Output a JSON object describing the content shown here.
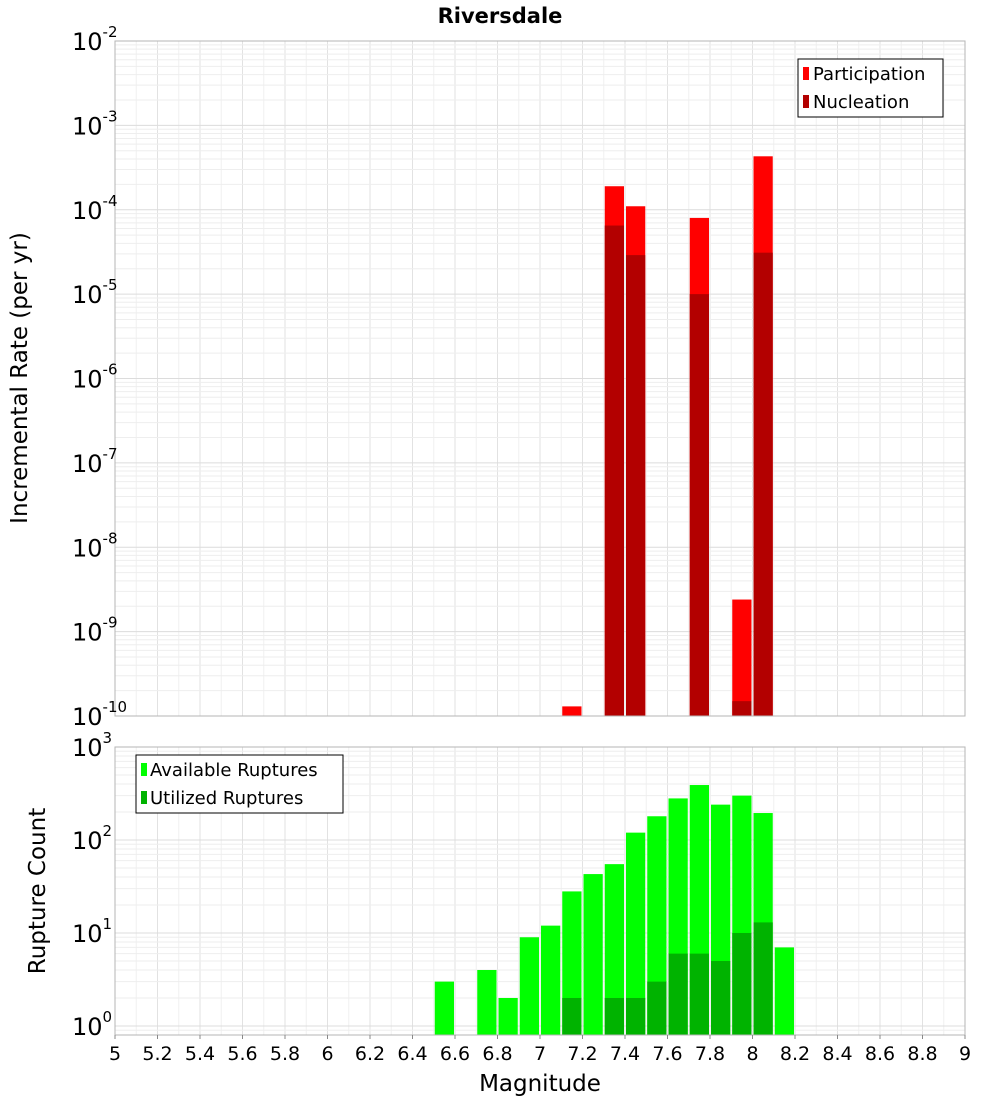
{
  "chart_data": [
    {
      "type": "bar",
      "title": "Riversdale",
      "xlabel": "",
      "ylabel": "Incremental Rate (per yr)",
      "y_scale": "log",
      "ylim": [
        1e-10,
        0.01
      ],
      "xlim": [
        5,
        9
      ],
      "bin_width": 0.1,
      "grid": true,
      "legend_position": "top-right",
      "series": [
        {
          "name": "Participation",
          "color": "#ff0000",
          "x": [
            7.15,
            7.35,
            7.45,
            7.75,
            7.95,
            8.05
          ],
          "values": [
            1.3e-10,
            0.00019,
            0.00011,
            8e-05,
            2.4e-09,
            0.00043
          ]
        },
        {
          "name": "Nucleation",
          "color": "#b30000",
          "x": [
            7.35,
            7.45,
            7.75,
            7.95,
            8.05
          ],
          "values": [
            6.5e-05,
            2.9e-05,
            1e-05,
            1.5e-10,
            3.1e-05
          ]
        }
      ]
    },
    {
      "type": "bar",
      "title": "",
      "xlabel": "Magnitude",
      "ylabel": "Rupture Count",
      "y_scale": "log",
      "ylim": [
        0.8,
        1000
      ],
      "xlim": [
        5,
        9
      ],
      "bin_width": 0.1,
      "grid": true,
      "legend_position": "top-left",
      "x_ticks": [
        "5",
        "5.2",
        "5.4",
        "5.6",
        "5.8",
        "6",
        "6.2",
        "6.4",
        "6.6",
        "6.8",
        "7",
        "7.2",
        "7.4",
        "7.6",
        "7.8",
        "8",
        "8.2",
        "8.4",
        "8.6",
        "8.8",
        "9"
      ],
      "series": [
        {
          "name": "Available Ruptures",
          "color": "#00ff00",
          "x": [
            6.55,
            6.75,
            6.85,
            6.95,
            7.05,
            7.15,
            7.25,
            7.35,
            7.45,
            7.55,
            7.65,
            7.75,
            7.85,
            7.95,
            8.05,
            8.15
          ],
          "values": [
            3,
            4,
            2,
            9,
            12,
            28,
            43,
            55,
            120,
            180,
            280,
            390,
            240,
            300,
            195,
            7
          ]
        },
        {
          "name": "Utilized Ruptures",
          "color": "#00b300",
          "x": [
            7.15,
            7.35,
            7.45,
            7.55,
            7.65,
            7.75,
            7.85,
            7.95,
            8.05
          ],
          "values": [
            2,
            2,
            2,
            3,
            6,
            6,
            5,
            10,
            13
          ]
        }
      ]
    }
  ],
  "y_tick_exponents_top": [
    "-2",
    "-3",
    "-4",
    "-5",
    "-6",
    "-7",
    "-8",
    "-9",
    "-10"
  ],
  "y_tick_exponents_bottom": [
    "3",
    "2",
    "1",
    "0"
  ],
  "y_tick_base": "10"
}
